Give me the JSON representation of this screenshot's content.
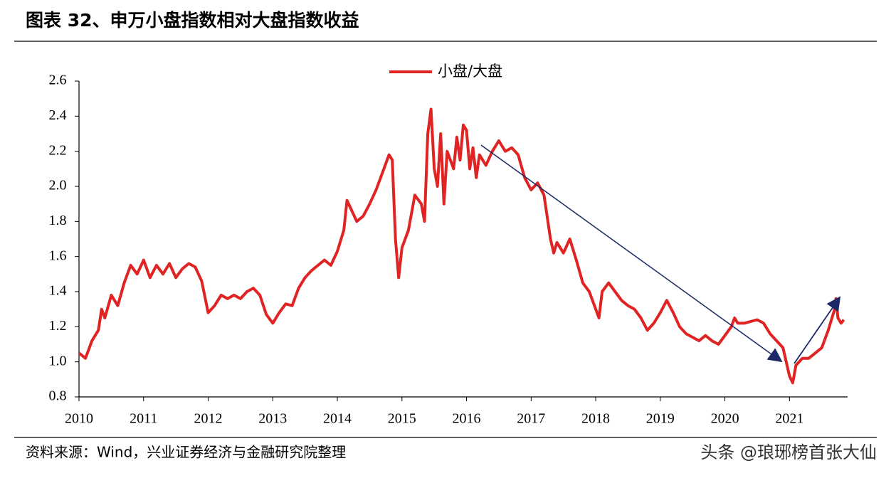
{
  "chart_data": {
    "type": "line",
    "title": "图表 32、申万小盘指数相对大盘指数收益",
    "source": "资料来源：Wind，兴业证券经济与金融研究院整理",
    "watermark": "头条 @琅琊榜首张大仙",
    "legend": "top",
    "grid": false,
    "xlim": [
      2010,
      2021.9
    ],
    "xticks": [
      2010,
      2011,
      2012,
      2013,
      2014,
      2015,
      2016,
      2017,
      2018,
      2019,
      2020,
      2021
    ],
    "ylim": [
      0.8,
      2.6
    ],
    "yticks": [
      0.8,
      {
        "value": 1,
        "label": "1.0"
      },
      1.2,
      1.4,
      1.6,
      1.8,
      {
        "value": 2,
        "label": "2.0"
      },
      2.2,
      2.4,
      2.6
    ],
    "x": [
      2010.0,
      2010.1,
      2010.2,
      2010.3,
      2010.35,
      2010.4,
      2010.5,
      2010.6,
      2010.7,
      2010.8,
      2010.9,
      2011.0,
      2011.1,
      2011.2,
      2011.3,
      2011.4,
      2011.5,
      2011.6,
      2011.7,
      2011.8,
      2011.9,
      2012.0,
      2012.1,
      2012.2,
      2012.3,
      2012.4,
      2012.5,
      2012.6,
      2012.7,
      2012.8,
      2012.9,
      2013.0,
      2013.1,
      2013.2,
      2013.3,
      2013.4,
      2013.5,
      2013.6,
      2013.7,
      2013.8,
      2013.9,
      2014.0,
      2014.1,
      2014.15,
      2014.2,
      2014.3,
      2014.4,
      2014.5,
      2014.6,
      2014.7,
      2014.8,
      2014.85,
      2014.9,
      2014.95,
      2015.0,
      2015.1,
      2015.2,
      2015.3,
      2015.35,
      2015.4,
      2015.45,
      2015.5,
      2015.55,
      2015.6,
      2015.65,
      2015.7,
      2015.8,
      2015.85,
      2015.9,
      2015.95,
      2016.0,
      2016.05,
      2016.1,
      2016.15,
      2016.2,
      2016.3,
      2016.4,
      2016.5,
      2016.6,
      2016.7,
      2016.8,
      2016.9,
      2017.0,
      2017.1,
      2017.2,
      2017.3,
      2017.35,
      2017.4,
      2017.5,
      2017.6,
      2017.7,
      2017.8,
      2017.9,
      2018.0,
      2018.05,
      2018.1,
      2018.2,
      2018.3,
      2018.4,
      2018.5,
      2018.6,
      2018.7,
      2018.8,
      2018.9,
      2019.0,
      2019.1,
      2019.2,
      2019.3,
      2019.4,
      2019.5,
      2019.6,
      2019.7,
      2019.8,
      2019.9,
      2020.0,
      2020.1,
      2020.15,
      2020.2,
      2020.3,
      2020.4,
      2020.5,
      2020.6,
      2020.7,
      2020.8,
      2020.9,
      2021.0,
      2021.05,
      2021.1,
      2021.2,
      2021.3,
      2021.4,
      2021.5,
      2021.6,
      2021.7,
      2021.72,
      2021.75,
      2021.8,
      2021.84
    ],
    "series": [
      {
        "name": "小盘/大盘",
        "color": "#e02424",
        "values": [
          1.05,
          1.02,
          1.12,
          1.18,
          1.3,
          1.25,
          1.38,
          1.32,
          1.45,
          1.55,
          1.5,
          1.58,
          1.48,
          1.55,
          1.5,
          1.56,
          1.48,
          1.53,
          1.56,
          1.54,
          1.46,
          1.28,
          1.32,
          1.38,
          1.36,
          1.38,
          1.36,
          1.4,
          1.42,
          1.38,
          1.27,
          1.22,
          1.28,
          1.33,
          1.32,
          1.42,
          1.48,
          1.52,
          1.55,
          1.58,
          1.55,
          1.63,
          1.75,
          1.92,
          1.88,
          1.8,
          1.83,
          1.9,
          1.98,
          2.08,
          2.18,
          2.15,
          1.7,
          1.48,
          1.65,
          1.75,
          1.95,
          1.9,
          1.8,
          2.3,
          2.44,
          2.1,
          2.0,
          2.3,
          1.9,
          2.2,
          2.1,
          2.28,
          2.15,
          2.35,
          2.32,
          2.1,
          2.22,
          2.05,
          2.18,
          2.12,
          2.2,
          2.26,
          2.2,
          2.22,
          2.18,
          2.05,
          1.98,
          2.02,
          1.95,
          1.7,
          1.62,
          1.68,
          1.62,
          1.7,
          1.58,
          1.45,
          1.4,
          1.3,
          1.25,
          1.4,
          1.45,
          1.4,
          1.35,
          1.32,
          1.3,
          1.25,
          1.18,
          1.22,
          1.28,
          1.35,
          1.28,
          1.2,
          1.16,
          1.14,
          1.12,
          1.15,
          1.12,
          1.1,
          1.15,
          1.2,
          1.25,
          1.22,
          1.22,
          1.23,
          1.24,
          1.22,
          1.16,
          1.12,
          1.08,
          0.92,
          0.88,
          0.98,
          1.02,
          1.02,
          1.05,
          1.08,
          1.18,
          1.3,
          1.36,
          1.25,
          1.22,
          1.24
        ]
      }
    ]
  }
}
